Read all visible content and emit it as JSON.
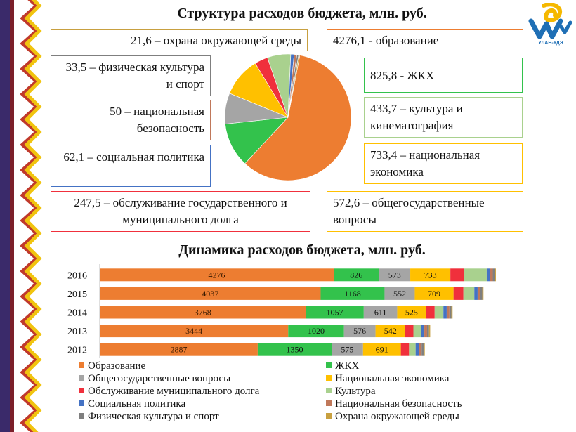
{
  "titles": {
    "structure": "Структура расходов бюджета, млн. руб.",
    "dynamics": "Динамика расходов бюджета, млн. руб."
  },
  "logo": {
    "caption": "УЛАН-УДЭ"
  },
  "colors": {
    "education": "#ED7D31",
    "housing": "#33C24C",
    "general": "#A5A5A5",
    "economy": "#FFC000",
    "debt": "#F0303C",
    "culture": "#A9D18E",
    "social": "#4472C4",
    "security": "#C0785A",
    "sport": "#7F7F7F",
    "environment": "#C8A040"
  },
  "pie_labels": [
    {
      "text": "21,6 – охрана окружающей среды",
      "key": "environment"
    },
    {
      "text": "33,5 – физическая культура и спорт",
      "key": "sport"
    },
    {
      "text": "50  – национальная безопасность",
      "key": "security"
    },
    {
      "text": "62,1 – социальная политика",
      "key": "social"
    },
    {
      "text": "247,5 – обслуживание государственного и муниципального долга",
      "key": "debt"
    },
    {
      "text": "4276,1 - образование",
      "key": "education"
    },
    {
      "text": "825,8 - ЖКХ",
      "key": "housing"
    },
    {
      "text": "433,7 – культура и кинематография",
      "key": "culture"
    },
    {
      "text": "733,4 – национальная экономика",
      "key": "economy"
    },
    {
      "text": "572,6 – общегосударственные вопросы",
      "key": "general"
    }
  ],
  "chart_data": [
    {
      "type": "pie",
      "title": "Структура расходов бюджета, млн. руб.",
      "categories": [
        "Образование",
        "ЖКХ",
        "Общегосударственные вопросы",
        "Национальная экономика",
        "Обслуживание муниципального долга",
        "Культура",
        "Социальная политика",
        "Национальная безопасность",
        "Физическая культура и спорт",
        "Охрана окружающей среды"
      ],
      "keys": [
        "education",
        "housing",
        "general",
        "economy",
        "debt",
        "culture",
        "social",
        "security",
        "sport",
        "environment"
      ],
      "values": [
        4276.1,
        825.8,
        572.6,
        733.4,
        247.5,
        433.7,
        62.1,
        50,
        33.5,
        21.6
      ]
    },
    {
      "type": "bar",
      "orientation": "horizontal",
      "stacked": true,
      "title": "Динамика расходов бюджета, млн. руб.",
      "categories": [
        "2016",
        "2015",
        "2014",
        "2013",
        "2012"
      ],
      "legend_position": "bottom",
      "series": [
        {
          "name": "Образование",
          "key": "education",
          "values": [
            4276,
            4037,
            3768,
            3444,
            2887
          ],
          "labeled": true
        },
        {
          "name": "ЖКХ",
          "key": "housing",
          "values": [
            826,
            1168,
            1057,
            1020,
            1350
          ],
          "labeled": true
        },
        {
          "name": "Общегосударственные вопросы",
          "key": "general",
          "values": [
            573,
            552,
            611,
            576,
            575
          ],
          "labeled": true
        },
        {
          "name": "Национальная экономика",
          "key": "economy",
          "values": [
            733,
            709,
            525,
            542,
            691
          ],
          "labeled": true
        },
        {
          "name": "Обслуживание муниципального долга",
          "key": "debt",
          "values": [
            245,
            180,
            160,
            150,
            150
          ],
          "labeled": false
        },
        {
          "name": "Культура",
          "key": "culture",
          "values": [
            420,
            200,
            160,
            140,
            120
          ],
          "labeled": false
        },
        {
          "name": "Социальная политика",
          "key": "social",
          "values": [
            60,
            60,
            60,
            60,
            60
          ],
          "labeled": false
        },
        {
          "name": "Национальная безопасность",
          "key": "security",
          "values": [
            50,
            50,
            50,
            50,
            50
          ],
          "labeled": false
        },
        {
          "name": "Физическая культура и спорт",
          "key": "sport",
          "values": [
            35,
            35,
            35,
            35,
            35
          ],
          "labeled": false
        },
        {
          "name": "Охрана окружающей среды",
          "key": "environment",
          "values": [
            22,
            22,
            22,
            22,
            22
          ],
          "labeled": false
        }
      ]
    }
  ],
  "legend": [
    {
      "label": "Образование",
      "key": "education"
    },
    {
      "label": "ЖКХ",
      "key": "housing"
    },
    {
      "label": "Общегосударственные вопросы",
      "key": "general"
    },
    {
      "label": "Национальная экономика",
      "key": "economy"
    },
    {
      "label": "Обслуживание муниципального долга",
      "key": "debt"
    },
    {
      "label": "Культура",
      "key": "culture"
    },
    {
      "label": "Социальная политика",
      "key": "social"
    },
    {
      "label": "Национальная безопасность",
      "key": "security"
    },
    {
      "label": "Физическая культура и спорт",
      "key": "sport"
    },
    {
      "label": "Охрана окружающей среды",
      "key": "environment"
    }
  ]
}
